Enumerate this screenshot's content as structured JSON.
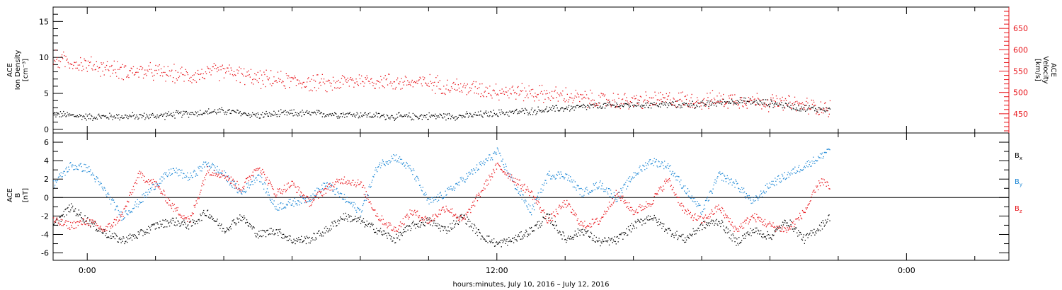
{
  "x_axis": {
    "label": "hours:minutes, July 10, 2016 – July 12, 2016",
    "range_hours": [
      -2,
      54
    ],
    "ticks": [
      {
        "hour": 0,
        "label": "0:00"
      },
      {
        "hour": 24,
        "label": "12:00"
      },
      {
        "hour": 48,
        "label": "0:00"
      }
    ]
  },
  "colors": {
    "black": "#000000",
    "red": "#e8151b",
    "blue": "#1e88d6"
  },
  "chart_data": [
    {
      "type": "scatter",
      "id": "density-velocity",
      "ylabel_left": [
        "ACE",
        "Ion Density",
        "[cm⁻³]"
      ],
      "ylabel_right": [
        "ACE",
        "Velocity",
        "[km/s]"
      ],
      "ylim_left": [
        -0.5,
        17
      ],
      "ylim_right": [
        405,
        700
      ],
      "left_ticks": [
        "0",
        "5",
        "10",
        "15"
      ],
      "right_ticks": [
        "450",
        "500",
        "550",
        "600",
        "650"
      ],
      "series": [
        {
          "color": "black",
          "axis": "left",
          "keypoints": [
            [
              -2,
              2.2
            ],
            [
              0,
              1.8
            ],
            [
              4,
              1.9
            ],
            [
              6,
              2.3
            ],
            [
              8,
              2.6
            ],
            [
              10,
              2.0
            ],
            [
              12,
              2.3
            ],
            [
              14,
              2.2
            ],
            [
              16,
              2.1
            ],
            [
              18,
              1.8
            ],
            [
              20,
              1.9
            ],
            [
              22,
              1.9
            ],
            [
              24,
              2.3
            ],
            [
              26,
              2.6
            ],
            [
              28,
              3.0
            ],
            [
              30,
              3.3
            ],
            [
              32,
              3.5
            ],
            [
              34,
              3.5
            ],
            [
              36,
              3.5
            ],
            [
              38,
              4.0
            ],
            [
              40,
              3.7
            ],
            [
              42,
              3.0
            ],
            [
              43.5,
              2.8
            ]
          ]
        },
        {
          "color": "red",
          "axis": "right",
          "keypoints": [
            [
              -2,
              580
            ],
            [
              0,
              565
            ],
            [
              2,
              552
            ],
            [
              4,
              548
            ],
            [
              6,
              540
            ],
            [
              8,
              552
            ],
            [
              10,
              532
            ],
            [
              12,
              528
            ],
            [
              14,
              520
            ],
            [
              16,
              530
            ],
            [
              18,
              525
            ],
            [
              20,
              523
            ],
            [
              22,
              512
            ],
            [
              24,
              505
            ],
            [
              26,
              500
            ],
            [
              28,
              492
            ],
            [
              30,
              482
            ],
            [
              32,
              480
            ],
            [
              34,
              485
            ],
            [
              36,
              482
            ],
            [
              38,
              485
            ],
            [
              40,
              478
            ],
            [
              42,
              470
            ],
            [
              43.5,
              465
            ]
          ]
        }
      ]
    },
    {
      "type": "scatter",
      "id": "magnetic-field",
      "ylabel_left": [
        "ACE",
        "B",
        "[nT]"
      ],
      "ylim": [
        -6.8,
        7
      ],
      "left_ticks": [
        "-6",
        "-4",
        "-2",
        "0",
        "2",
        "4",
        "6"
      ],
      "zero_line": true,
      "legend": [
        {
          "label": "B",
          "sub": "x",
          "color": "black"
        },
        {
          "label": "B",
          "sub": "y",
          "color": "blue"
        },
        {
          "label": "B",
          "sub": "z",
          "color": "red"
        }
      ],
      "series": [
        {
          "name": "Bx",
          "color": "black",
          "keypoints": [
            [
              -2,
              -3.0
            ],
            [
              -1,
              -1.0
            ],
            [
              0,
              -2.5
            ],
            [
              1,
              -3.8
            ],
            [
              2,
              -4.6
            ],
            [
              3,
              -4.0
            ],
            [
              4,
              -3.0
            ],
            [
              5,
              -2.5
            ],
            [
              6,
              -3.0
            ],
            [
              7,
              -1.5
            ],
            [
              8,
              -3.5
            ],
            [
              9,
              -2.0
            ],
            [
              10,
              -4.0
            ],
            [
              11,
              -3.5
            ],
            [
              12,
              -4.6
            ],
            [
              13,
              -4.5
            ],
            [
              14,
              -3.5
            ],
            [
              15,
              -2.0
            ],
            [
              16,
              -2.5
            ],
            [
              17,
              -3.5
            ],
            [
              18,
              -4.5
            ],
            [
              19,
              -3.0
            ],
            [
              20,
              -2.5
            ],
            [
              21,
              -3.5
            ],
            [
              22,
              -2.0
            ],
            [
              23,
              -4.0
            ],
            [
              24,
              -5.0
            ],
            [
              25,
              -4.5
            ],
            [
              26,
              -3.5
            ],
            [
              27,
              -2.0
            ],
            [
              28,
              -4.5
            ],
            [
              29,
              -3.5
            ],
            [
              30,
              -4.8
            ],
            [
              31,
              -4.6
            ],
            [
              32,
              -3.0
            ],
            [
              33,
              -2.0
            ],
            [
              34,
              -3.5
            ],
            [
              35,
              -4.5
            ],
            [
              36,
              -3.0
            ],
            [
              37,
              -2.5
            ],
            [
              38,
              -4.8
            ],
            [
              39,
              -3.5
            ],
            [
              40,
              -4.2
            ],
            [
              41,
              -2.5
            ],
            [
              42,
              -4.5
            ],
            [
              43,
              -3.0
            ],
            [
              43.5,
              -2.0
            ]
          ]
        },
        {
          "name": "By",
          "color": "blue",
          "keypoints": [
            [
              -2,
              1.5
            ],
            [
              -1,
              3.5
            ],
            [
              0,
              3.2
            ],
            [
              1,
              0.8
            ],
            [
              2,
              -2.0
            ],
            [
              3,
              -0.5
            ],
            [
              4,
              1.5
            ],
            [
              5,
              3.0
            ],
            [
              6,
              2.2
            ],
            [
              7,
              3.8
            ],
            [
              8,
              2.5
            ],
            [
              9,
              0.5
            ],
            [
              10,
              2.5
            ],
            [
              11,
              -1.0
            ],
            [
              12,
              -0.5
            ],
            [
              13,
              0.0
            ],
            [
              14,
              1.5
            ],
            [
              15,
              0.0
            ],
            [
              16,
              -1.5
            ],
            [
              17,
              3.5
            ],
            [
              18,
              4.5
            ],
            [
              19,
              3.0
            ],
            [
              20,
              -0.5
            ],
            [
              21,
              0.5
            ],
            [
              22,
              2.0
            ],
            [
              23,
              3.5
            ],
            [
              24,
              5.0
            ],
            [
              25,
              1.5
            ],
            [
              26,
              -1.5
            ],
            [
              27,
              2.5
            ],
            [
              28,
              2.5
            ],
            [
              29,
              0.5
            ],
            [
              30,
              1.5
            ],
            [
              31,
              0.0
            ],
            [
              32,
              2.5
            ],
            [
              33,
              4.0
            ],
            [
              34,
              3.5
            ],
            [
              35,
              1.0
            ],
            [
              36,
              -1.5
            ],
            [
              37,
              2.5
            ],
            [
              38,
              1.5
            ],
            [
              39,
              -0.5
            ],
            [
              40,
              1.5
            ],
            [
              41,
              2.5
            ],
            [
              42,
              3.5
            ],
            [
              43,
              4.5
            ],
            [
              43.5,
              5.5
            ]
          ]
        },
        {
          "name": "Bz",
          "color": "red",
          "keypoints": [
            [
              -2,
              -2.5
            ],
            [
              -1,
              -3.0
            ],
            [
              0,
              -2.5
            ],
            [
              1,
              -3.5
            ],
            [
              2,
              -2.0
            ],
            [
              3,
              2.5
            ],
            [
              4,
              1.5
            ],
            [
              5,
              -1.0
            ],
            [
              6,
              -2.5
            ],
            [
              7,
              3.0
            ],
            [
              8,
              2.5
            ],
            [
              9,
              1.0
            ],
            [
              10,
              3.5
            ],
            [
              11,
              0.5
            ],
            [
              12,
              1.5
            ],
            [
              13,
              -0.5
            ],
            [
              14,
              1.0
            ],
            [
              15,
              2.0
            ],
            [
              16,
              1.5
            ],
            [
              17,
              -2.0
            ],
            [
              18,
              -3.5
            ],
            [
              19,
              -1.5
            ],
            [
              20,
              -2.5
            ],
            [
              21,
              -1.0
            ],
            [
              22,
              -2.5
            ],
            [
              23,
              0.5
            ],
            [
              24,
              3.5
            ],
            [
              25,
              2.0
            ],
            [
              26,
              0.5
            ],
            [
              27,
              -2.5
            ],
            [
              28,
              -0.5
            ],
            [
              29,
              -3.0
            ],
            [
              30,
              -2.5
            ],
            [
              31,
              0.5
            ],
            [
              32,
              -1.5
            ],
            [
              33,
              -0.5
            ],
            [
              34,
              2.0
            ],
            [
              35,
              -1.5
            ],
            [
              36,
              -2.5
            ],
            [
              37,
              -1.0
            ],
            [
              38,
              -3.5
            ],
            [
              39,
              -2.0
            ],
            [
              40,
              -3.0
            ],
            [
              41,
              -3.5
            ],
            [
              42,
              -1.5
            ],
            [
              43,
              2.0
            ],
            [
              43.5,
              1.0
            ]
          ]
        }
      ]
    }
  ]
}
